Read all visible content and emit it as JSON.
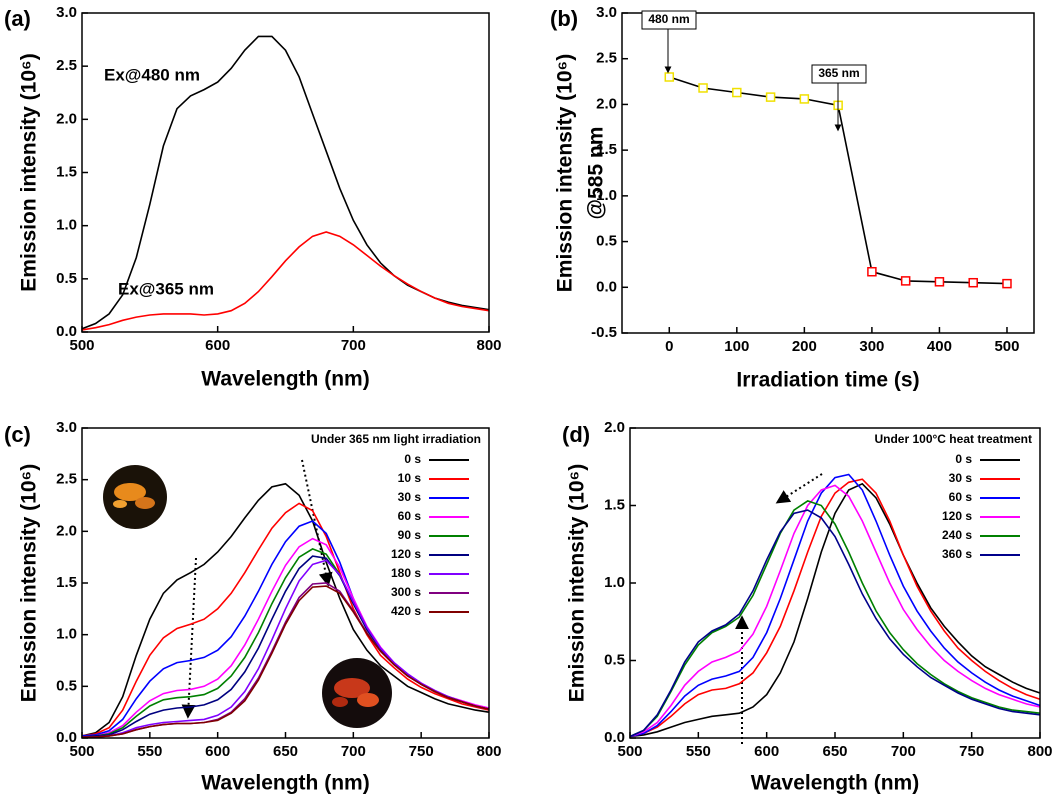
{
  "chart_data": [
    {
      "type": "line",
      "panel_label": "(a)",
      "x_label": "Wavelength (nm)",
      "y_label": "Emission intensity (10⁶)",
      "xlim": [
        500,
        800
      ],
      "ylim": [
        0,
        3
      ],
      "xticks": [
        500,
        600,
        700,
        800
      ],
      "yticks": [
        {
          "value": 0,
          "label": "0.0"
        },
        0.5,
        {
          "value": 1,
          "label": "1.0"
        },
        1.5,
        {
          "value": 2,
          "label": "2.0"
        },
        2.5,
        {
          "value": 3,
          "label": "3.0"
        }
      ],
      "x": [
        500,
        510,
        520,
        530,
        540,
        550,
        560,
        570,
        580,
        590,
        600,
        610,
        620,
        630,
        640,
        650,
        660,
        670,
        680,
        690,
        700,
        710,
        720,
        730,
        740,
        750,
        760,
        770,
        780,
        790,
        800
      ],
      "series": [
        {
          "name": "Ex@480 nm",
          "color": "#000000",
          "values": [
            0.03,
            0.08,
            0.17,
            0.35,
            0.7,
            1.2,
            1.75,
            2.1,
            2.22,
            2.28,
            2.35,
            2.48,
            2.65,
            2.78,
            2.78,
            2.65,
            2.4,
            2.05,
            1.7,
            1.35,
            1.05,
            0.82,
            0.65,
            0.53,
            0.44,
            0.38,
            0.32,
            0.28,
            0.25,
            0.23,
            0.21
          ]
        },
        {
          "name": "Ex@365 nm",
          "color": "#ff0000",
          "values": [
            0.02,
            0.04,
            0.07,
            0.11,
            0.14,
            0.16,
            0.17,
            0.17,
            0.17,
            0.16,
            0.17,
            0.2,
            0.27,
            0.38,
            0.52,
            0.67,
            0.8,
            0.9,
            0.94,
            0.9,
            0.82,
            0.72,
            0.62,
            0.53,
            0.45,
            0.38,
            0.32,
            0.27,
            0.24,
            0.22,
            0.2
          ]
        }
      ]
    },
    {
      "type": "line",
      "panel_label": "(b)",
      "x_label": "Irradiation time (s)",
      "y_label": "Emission intensity (10⁶)",
      "y_label_2": "@585 nm",
      "xlim": [
        -70,
        540
      ],
      "ylim": [
        -0.5,
        3
      ],
      "xticks": [
        0,
        100,
        200,
        300,
        400,
        500
      ],
      "yticks": [
        -0.5,
        {
          "value": 0,
          "label": "0.0"
        },
        0.5,
        {
          "value": 1,
          "label": "1.0"
        },
        1.5,
        {
          "value": 2,
          "label": "2.0"
        },
        2.5,
        {
          "value": 3,
          "label": "3.0"
        }
      ],
      "x": [
        0,
        50,
        100,
        150,
        200,
        250,
        300,
        350,
        400,
        450,
        500
      ],
      "series": [
        {
          "color": "#000000",
          "marker_colors": [
            "#f0e000",
            "#f0e000",
            "#f0e000",
            "#f0e000",
            "#f0e000",
            "#f0e000",
            "#ff0000",
            "#ff0000",
            "#ff0000",
            "#ff0000",
            "#ff0000"
          ],
          "values": [
            2.3,
            2.18,
            2.13,
            2.08,
            2.06,
            1.99,
            0.17,
            0.07,
            0.06,
            0.05,
            0.04
          ]
        }
      ],
      "annotations": [
        {
          "text": "480 nm",
          "color": "#0000ff"
        },
        {
          "text": "365 nm",
          "color": "#8000ff"
        }
      ]
    },
    {
      "type": "line",
      "panel_label": "(c)",
      "x_label": "Wavelength (nm)",
      "y_label": "Emission intensity (10⁶)",
      "legend_title": "Under 365 nm light irradiation",
      "legend": "upper right",
      "xlim": [
        500,
        800
      ],
      "ylim": [
        0,
        3
      ],
      "xticks": [
        500,
        550,
        600,
        650,
        700,
        750,
        800
      ],
      "yticks": [
        {
          "value": 0,
          "label": "0.0"
        },
        0.5,
        {
          "value": 1,
          "label": "1.0"
        },
        1.5,
        {
          "value": 2,
          "label": "2.0"
        },
        2.5,
        {
          "value": 3,
          "label": "3.0"
        }
      ],
      "x": [
        500,
        510,
        520,
        530,
        540,
        550,
        560,
        570,
        580,
        590,
        600,
        610,
        620,
        630,
        640,
        650,
        660,
        670,
        680,
        690,
        700,
        710,
        720,
        730,
        740,
        750,
        760,
        770,
        780,
        790,
        800
      ],
      "series": [
        {
          "name": "0 s",
          "color": "#000000",
          "values": [
            0.02,
            0.05,
            0.15,
            0.4,
            0.8,
            1.15,
            1.4,
            1.53,
            1.6,
            1.68,
            1.8,
            1.95,
            2.13,
            2.3,
            2.43,
            2.46,
            2.35,
            2.1,
            1.7,
            1.35,
            1.05,
            0.85,
            0.7,
            0.6,
            0.5,
            0.44,
            0.38,
            0.33,
            0.3,
            0.27,
            0.25
          ]
        },
        {
          "name": "10 s",
          "color": "#ff0000",
          "values": [
            0.02,
            0.04,
            0.1,
            0.27,
            0.55,
            0.8,
            0.97,
            1.06,
            1.1,
            1.15,
            1.25,
            1.4,
            1.6,
            1.82,
            2.03,
            2.18,
            2.27,
            2.2,
            1.95,
            1.6,
            1.25,
            1.0,
            0.8,
            0.68,
            0.57,
            0.49,
            0.43,
            0.38,
            0.33,
            0.3,
            0.27
          ]
        },
        {
          "name": "30 s",
          "color": "#0000ff",
          "values": [
            0.02,
            0.03,
            0.07,
            0.18,
            0.38,
            0.55,
            0.67,
            0.73,
            0.75,
            0.78,
            0.85,
            0.98,
            1.18,
            1.42,
            1.68,
            1.9,
            2.05,
            2.1,
            1.98,
            1.7,
            1.35,
            1.07,
            0.87,
            0.72,
            0.61,
            0.52,
            0.45,
            0.4,
            0.35,
            0.31,
            0.28
          ]
        },
        {
          "name": "60 s",
          "color": "#ff00ff",
          "values": [
            0.01,
            0.02,
            0.05,
            0.12,
            0.25,
            0.36,
            0.43,
            0.46,
            0.47,
            0.5,
            0.57,
            0.7,
            0.9,
            1.15,
            1.42,
            1.67,
            1.85,
            1.93,
            1.87,
            1.65,
            1.35,
            1.08,
            0.88,
            0.73,
            0.62,
            0.53,
            0.46,
            0.4,
            0.36,
            0.32,
            0.29
          ]
        },
        {
          "name": "90 s",
          "color": "#008000",
          "values": [
            0.01,
            0.02,
            0.04,
            0.1,
            0.21,
            0.31,
            0.37,
            0.39,
            0.4,
            0.42,
            0.48,
            0.6,
            0.78,
            1.02,
            1.3,
            1.55,
            1.75,
            1.83,
            1.78,
            1.58,
            1.3,
            1.05,
            0.86,
            0.72,
            0.61,
            0.52,
            0.45,
            0.4,
            0.35,
            0.31,
            0.28
          ]
        },
        {
          "name": "120 s",
          "color": "#000080",
          "values": [
            0.01,
            0.02,
            0.03,
            0.08,
            0.16,
            0.23,
            0.27,
            0.29,
            0.3,
            0.32,
            0.37,
            0.47,
            0.64,
            0.87,
            1.15,
            1.42,
            1.64,
            1.76,
            1.74,
            1.57,
            1.3,
            1.05,
            0.86,
            0.72,
            0.61,
            0.52,
            0.45,
            0.4,
            0.35,
            0.31,
            0.28
          ]
        },
        {
          "name": "180 s",
          "color": "#8000ff",
          "values": [
            0.01,
            0.01,
            0.02,
            0.05,
            0.1,
            0.13,
            0.15,
            0.16,
            0.17,
            0.18,
            0.22,
            0.3,
            0.45,
            0.67,
            0.95,
            1.25,
            1.52,
            1.68,
            1.72,
            1.58,
            1.32,
            1.07,
            0.87,
            0.73,
            0.62,
            0.53,
            0.46,
            0.4,
            0.35,
            0.31,
            0.28
          ]
        },
        {
          "name": "300 s",
          "color": "#800080",
          "values": [
            0.01,
            0.01,
            0.02,
            0.04,
            0.08,
            0.11,
            0.13,
            0.14,
            0.14,
            0.15,
            0.18,
            0.25,
            0.38,
            0.58,
            0.84,
            1.12,
            1.36,
            1.49,
            1.5,
            1.42,
            1.23,
            1.02,
            0.84,
            0.71,
            0.6,
            0.52,
            0.45,
            0.39,
            0.35,
            0.31,
            0.28
          ]
        },
        {
          "name": "420 s",
          "color": "#800000",
          "values": [
            0.01,
            0.01,
            0.02,
            0.04,
            0.08,
            0.11,
            0.13,
            0.14,
            0.14,
            0.15,
            0.17,
            0.24,
            0.36,
            0.56,
            0.82,
            1.1,
            1.33,
            1.46,
            1.47,
            1.4,
            1.22,
            1.01,
            0.84,
            0.71,
            0.6,
            0.52,
            0.45,
            0.39,
            0.35,
            0.31,
            0.28
          ]
        }
      ]
    },
    {
      "type": "line",
      "panel_label": "(d)",
      "x_label": "Wavelength (nm)",
      "y_label": "Emission intensity (10⁶)",
      "legend_title": "Under 100°C heat treatment",
      "legend": "upper right",
      "xlim": [
        500,
        800
      ],
      "ylim": [
        0,
        2
      ],
      "xticks": [
        500,
        550,
        600,
        650,
        700,
        750,
        800
      ],
      "yticks": [
        {
          "value": 0,
          "label": "0.0"
        },
        0.5,
        {
          "value": 1,
          "label": "1.0"
        },
        1.5,
        {
          "value": 2,
          "label": "2.0"
        }
      ],
      "x": [
        500,
        510,
        520,
        530,
        540,
        550,
        560,
        570,
        580,
        590,
        600,
        610,
        620,
        630,
        640,
        650,
        660,
        670,
        680,
        690,
        700,
        710,
        720,
        730,
        740,
        750,
        760,
        770,
        780,
        790,
        800
      ],
      "series": [
        {
          "name": "0 s",
          "color": "#000000",
          "values": [
            0.01,
            0.02,
            0.04,
            0.07,
            0.1,
            0.12,
            0.14,
            0.15,
            0.16,
            0.2,
            0.28,
            0.42,
            0.62,
            0.9,
            1.2,
            1.45,
            1.6,
            1.64,
            1.55,
            1.38,
            1.18,
            1.0,
            0.84,
            0.72,
            0.62,
            0.53,
            0.46,
            0.41,
            0.36,
            0.32,
            0.29
          ]
        },
        {
          "name": "30 s",
          "color": "#ff0000",
          "values": [
            0.01,
            0.03,
            0.07,
            0.14,
            0.22,
            0.28,
            0.31,
            0.32,
            0.35,
            0.42,
            0.55,
            0.72,
            0.95,
            1.2,
            1.43,
            1.58,
            1.65,
            1.67,
            1.58,
            1.4,
            1.18,
            0.98,
            0.82,
            0.69,
            0.58,
            0.5,
            0.43,
            0.37,
            0.32,
            0.28,
            0.25
          ]
        },
        {
          "name": "60 s",
          "color": "#0000ff",
          "values": [
            0.01,
            0.03,
            0.08,
            0.17,
            0.27,
            0.34,
            0.38,
            0.4,
            0.43,
            0.52,
            0.68,
            0.9,
            1.15,
            1.4,
            1.58,
            1.68,
            1.7,
            1.6,
            1.4,
            1.18,
            0.98,
            0.82,
            0.69,
            0.58,
            0.49,
            0.42,
            0.36,
            0.31,
            0.27,
            0.24,
            0.21
          ]
        },
        {
          "name": "120 s",
          "color": "#ff00ff",
          "values": [
            0.01,
            0.04,
            0.1,
            0.21,
            0.34,
            0.43,
            0.49,
            0.52,
            0.56,
            0.67,
            0.85,
            1.08,
            1.32,
            1.5,
            1.6,
            1.63,
            1.56,
            1.4,
            1.2,
            1.0,
            0.83,
            0.7,
            0.59,
            0.5,
            0.43,
            0.37,
            0.32,
            0.28,
            0.25,
            0.22,
            0.2
          ]
        },
        {
          "name": "240 s",
          "color": "#008000",
          "values": [
            0.01,
            0.05,
            0.14,
            0.3,
            0.47,
            0.6,
            0.68,
            0.72,
            0.78,
            0.92,
            1.12,
            1.32,
            1.47,
            1.53,
            1.5,
            1.38,
            1.2,
            1.0,
            0.82,
            0.68,
            0.57,
            0.48,
            0.41,
            0.35,
            0.3,
            0.26,
            0.23,
            0.2,
            0.18,
            0.17,
            0.16
          ]
        },
        {
          "name": "360 s",
          "color": "#00008b",
          "values": [
            0.01,
            0.05,
            0.15,
            0.31,
            0.49,
            0.62,
            0.69,
            0.73,
            0.8,
            0.95,
            1.15,
            1.33,
            1.45,
            1.47,
            1.42,
            1.3,
            1.12,
            0.93,
            0.77,
            0.64,
            0.54,
            0.46,
            0.39,
            0.34,
            0.29,
            0.25,
            0.22,
            0.19,
            0.17,
            0.16,
            0.15
          ]
        }
      ]
    }
  ]
}
